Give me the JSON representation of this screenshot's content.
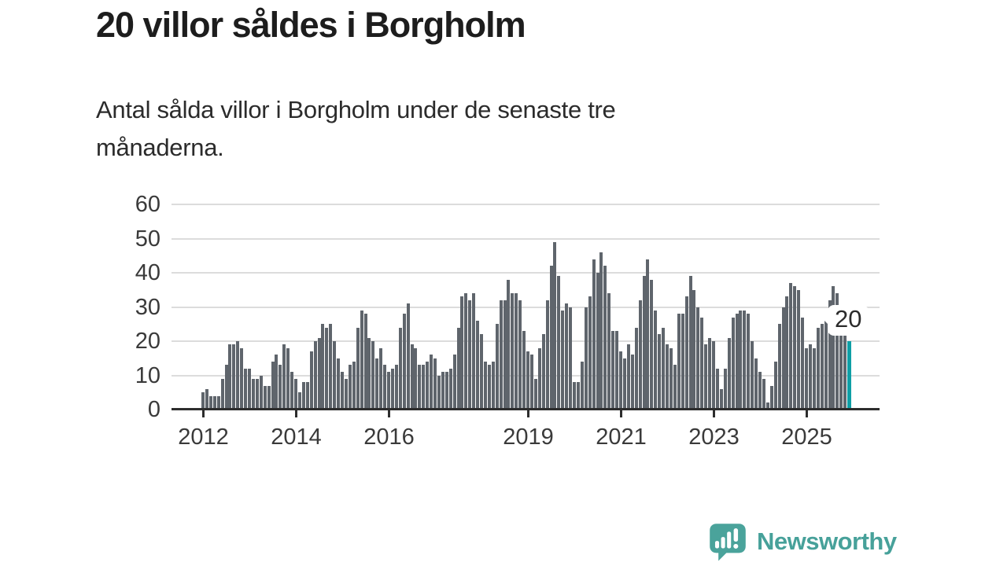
{
  "title": "20 villor såldes i Borgholm",
  "subtitle_lines": [
    "Antal sålda villor i Borgholm under de senaste tre",
    "månaderna."
  ],
  "subtitle_full": "Antal sålda villor i Borgholm under de senaste tre månaderna.",
  "annotation": {
    "label": "20"
  },
  "logo": {
    "text": "Newsworthy",
    "color": "#47a19a",
    "icon": "newsworthy-speech-bubble-chart-icon",
    "icon_color": "#4aa39b"
  },
  "chart_data": {
    "type": "bar",
    "title": "20 villor såldes i Borgholm",
    "xlabel": "",
    "ylabel": "",
    "frequency": "monthly",
    "x_start_year": 2012,
    "ylim": [
      0,
      60
    ],
    "yticks": [
      0,
      10,
      20,
      30,
      40,
      50,
      60
    ],
    "grid": true,
    "gridline_color": "#dcdcdc",
    "axis_color": "#2d2d2d",
    "bar_color": "#5f656c",
    "highlight_color": "#0f9fa6",
    "highlight_last_bar": true,
    "last_value_label": "20",
    "year_ticks": [
      {
        "label": "2012",
        "month_index": 0
      },
      {
        "label": "2014",
        "month_index": 24
      },
      {
        "label": "2016",
        "month_index": 48
      },
      {
        "label": "2019",
        "month_index": 84
      },
      {
        "label": "2021",
        "month_index": 108
      },
      {
        "label": "2023",
        "month_index": 132
      },
      {
        "label": "2025",
        "month_index": 156
      }
    ],
    "values": [
      5,
      6,
      4,
      4,
      4,
      9,
      13,
      19,
      19,
      20,
      18,
      12,
      12,
      9,
      9,
      10,
      7,
      7,
      14,
      16,
      13,
      19,
      18,
      11,
      9,
      5,
      8,
      8,
      17,
      20,
      21,
      25,
      24,
      25,
      20,
      15,
      11,
      9,
      13,
      14,
      24,
      29,
      28,
      21,
      20,
      15,
      18,
      13,
      11,
      12,
      13,
      24,
      28,
      31,
      19,
      18,
      13,
      13,
      14,
      16,
      15,
      10,
      11,
      11,
      12,
      16,
      24,
      33,
      34,
      32,
      34,
      26,
      22,
      14,
      13,
      14,
      25,
      32,
      32,
      38,
      34,
      34,
      32,
      23,
      17,
      16,
      9,
      18,
      22,
      32,
      42,
      49,
      39,
      29,
      31,
      30,
      8,
      8,
      14,
      30,
      33,
      44,
      40,
      46,
      42,
      34,
      23,
      23,
      17,
      15,
      19,
      16,
      24,
      32,
      39,
      44,
      38,
      29,
      22,
      24,
      19,
      18,
      13,
      28,
      28,
      33,
      39,
      35,
      30,
      27,
      19,
      21,
      20,
      12,
      6,
      12,
      21,
      27,
      28,
      29,
      29,
      28,
      20,
      15,
      11,
      9,
      2,
      7,
      14,
      25,
      30,
      33,
      37,
      36,
      35,
      27,
      18,
      19,
      18,
      24,
      25,
      26,
      32,
      36,
      34,
      22,
      22,
      20
    ]
  }
}
